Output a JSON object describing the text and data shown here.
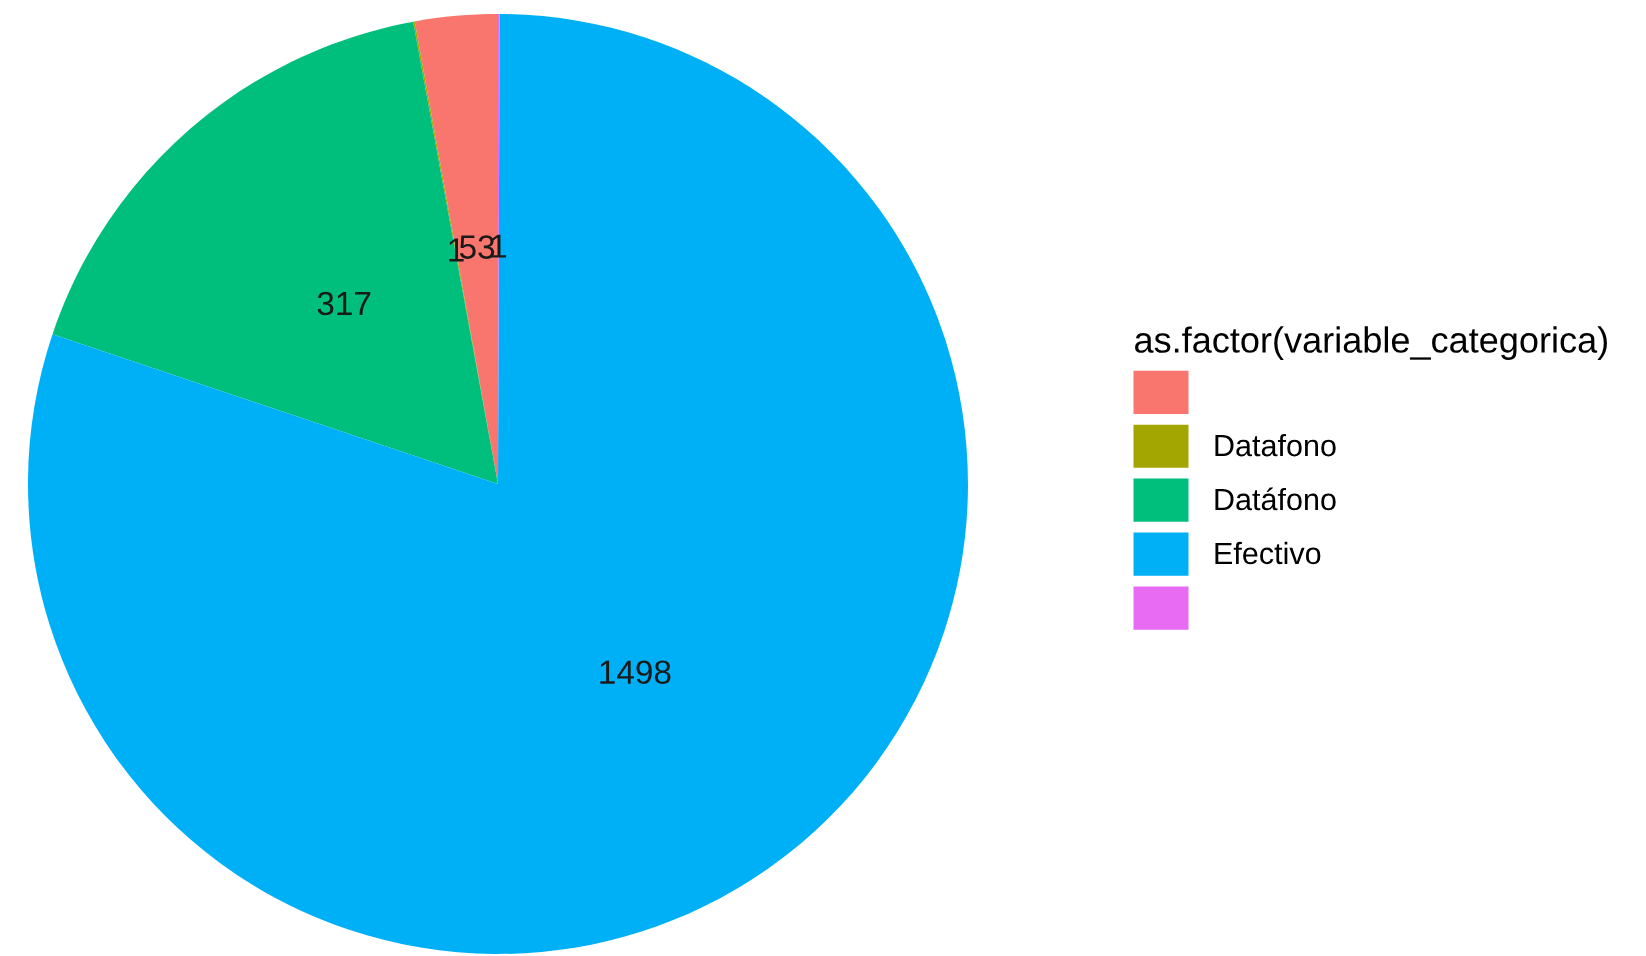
{
  "chart_data": {
    "type": "pie",
    "legend_title": "as.factor(variable_categorica)",
    "legend": "right",
    "categories": [
      null,
      "Datafono",
      "Datáfono",
      "Efectivo",
      null
    ],
    "values": [
      53,
      1,
      317,
      1498,
      1
    ],
    "colors": [
      "#f8766d",
      "#a3a500",
      "#00bf7d",
      "#00b0f6",
      "#e76bf3"
    ],
    "data_labels": true
  }
}
